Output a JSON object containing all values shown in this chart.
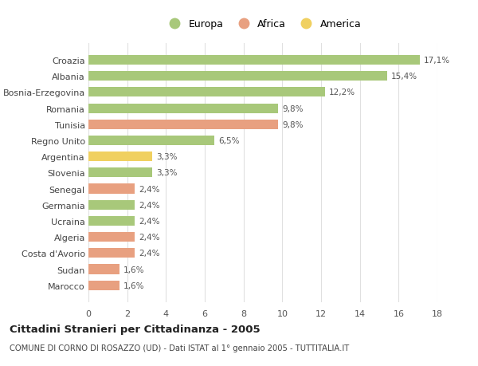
{
  "categories": [
    "Croazia",
    "Albania",
    "Bosnia-Erzegovina",
    "Romania",
    "Tunisia",
    "Regno Unito",
    "Argentina",
    "Slovenia",
    "Senegal",
    "Germania",
    "Ucraina",
    "Algeria",
    "Costa d'Avorio",
    "Sudan",
    "Marocco"
  ],
  "values": [
    17.1,
    15.4,
    12.2,
    9.8,
    9.8,
    6.5,
    3.3,
    3.3,
    2.4,
    2.4,
    2.4,
    2.4,
    2.4,
    1.6,
    1.6
  ],
  "labels": [
    "17,1%",
    "15,4%",
    "12,2%",
    "9,8%",
    "9,8%",
    "6,5%",
    "3,3%",
    "3,3%",
    "2,4%",
    "2,4%",
    "2,4%",
    "2,4%",
    "2,4%",
    "1,6%",
    "1,6%"
  ],
  "continents": [
    "Europa",
    "Europa",
    "Europa",
    "Europa",
    "Africa",
    "Europa",
    "America",
    "Europa",
    "Africa",
    "Europa",
    "Europa",
    "Africa",
    "Africa",
    "Africa",
    "Africa"
  ],
  "continent_colors": {
    "Europa": "#a8c87a",
    "Africa": "#e8a080",
    "America": "#f0d060"
  },
  "background_color": "#ffffff",
  "grid_color": "#e0e0e0",
  "title": "Cittadini Stranieri per Cittadinanza - 2005",
  "subtitle": "COMUNE DI CORNO DI ROSAZZO (UD) - Dati ISTAT al 1° gennaio 2005 - TUTTITALIA.IT",
  "xlim": [
    0,
    18
  ],
  "xticks": [
    0,
    2,
    4,
    6,
    8,
    10,
    12,
    14,
    16,
    18
  ]
}
